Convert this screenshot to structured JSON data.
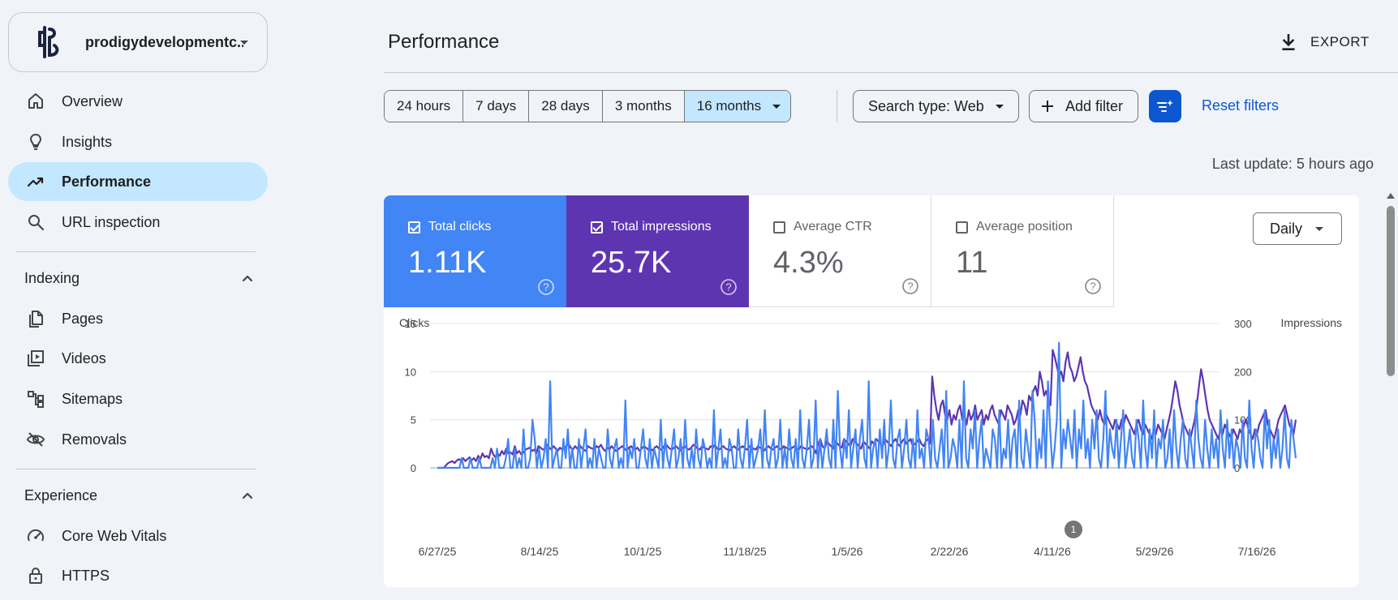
{
  "sidebar": {
    "property_name": "prodigydevelopmentc...",
    "nav": [
      {
        "label": "Overview",
        "icon": "home-icon"
      },
      {
        "label": "Insights",
        "icon": "lightbulb-icon"
      },
      {
        "label": "Performance",
        "icon": "trending-up-icon",
        "active": true
      },
      {
        "label": "URL inspection",
        "icon": "search-icon"
      }
    ],
    "indexing": {
      "title": "Indexing",
      "items": [
        {
          "label": "Pages",
          "icon": "pages-icon"
        },
        {
          "label": "Videos",
          "icon": "video-library-icon"
        },
        {
          "label": "Sitemaps",
          "icon": "sitemap-icon"
        },
        {
          "label": "Removals",
          "icon": "visibility-off-icon"
        }
      ]
    },
    "experience": {
      "title": "Experience",
      "items": [
        {
          "label": "Core Web Vitals",
          "icon": "speed-gauge-icon"
        },
        {
          "label": "HTTPS",
          "icon": "lock-icon"
        }
      ]
    }
  },
  "header": {
    "title": "Performance",
    "export_label": "EXPORT"
  },
  "filters": {
    "ranges": [
      "24 hours",
      "7 days",
      "28 days",
      "3 months",
      "16 months"
    ],
    "selected_range": "16 months",
    "search_type": "Search type: Web",
    "add_filter": "Add filter",
    "reset_filters": "Reset filters",
    "last_update": "Last update: 5 hours ago"
  },
  "metrics": [
    {
      "label": "Total clicks",
      "value": "1.11K",
      "checked": true,
      "color": "#4285f4"
    },
    {
      "label": "Total impressions",
      "value": "25.7K",
      "checked": true,
      "color": "#5e35b1"
    },
    {
      "label": "Average CTR",
      "value": "4.3%",
      "checked": false
    },
    {
      "label": "Average position",
      "value": "11",
      "checked": false
    }
  ],
  "granularity": "Daily",
  "annotation_marker": "1",
  "colors": {
    "clicks": "#4285f4",
    "impressions": "#5e35b1",
    "accent": "#0b57d0",
    "selected": "#c2e7ff"
  },
  "chart_data": {
    "type": "line",
    "ylabel_left": "Clicks",
    "ylabel_right": "Impressions",
    "ylim_left": [
      0,
      15
    ],
    "ylim_right": [
      0,
      300
    ],
    "yticks_left": [
      "15",
      "10",
      "5",
      "0"
    ],
    "yticks_right": [
      "300",
      "200",
      "100",
      "0"
    ],
    "x_ticks": [
      "6/27/25",
      "8/14/25",
      "10/1/25",
      "11/18/25",
      "1/5/26",
      "2/22/26",
      "4/11/26",
      "5/29/26",
      "7/16/26"
    ],
    "x_start": "2025-06-27",
    "series": [
      {
        "name": "Clicks",
        "axis": "left",
        "values": [
          0,
          0,
          0,
          0,
          0,
          0,
          0,
          0,
          0,
          0,
          0,
          1,
          0,
          0,
          0,
          1,
          0,
          0,
          0,
          1,
          0,
          0,
          0,
          0,
          0,
          1,
          0,
          2,
          0,
          0,
          0,
          1,
          3,
          0,
          0,
          2,
          0,
          1,
          0,
          4,
          0,
          0,
          1,
          5,
          3,
          0,
          2,
          0,
          1,
          3,
          0,
          9,
          0,
          1,
          2,
          0,
          0,
          3,
          1,
          4,
          0,
          2,
          0,
          0,
          3,
          0,
          2,
          4,
          0,
          1,
          0,
          3,
          0,
          2,
          1,
          0,
          0,
          4,
          1,
          0,
          2,
          3,
          0,
          1,
          0,
          7,
          0,
          2,
          1,
          3,
          0,
          0,
          2,
          4,
          1,
          0,
          3,
          0,
          2,
          1,
          0,
          5,
          0,
          3,
          1,
          0,
          2,
          4,
          0,
          1,
          3,
          0,
          5,
          1,
          0,
          2,
          0,
          4,
          1,
          0,
          3,
          2,
          0,
          1,
          0,
          6,
          0,
          2,
          4,
          0,
          1,
          0,
          3,
          2,
          0,
          0,
          4,
          1,
          0,
          2,
          5,
          0,
          3,
          0,
          1,
          2,
          4,
          0,
          6,
          1,
          0,
          2,
          3,
          0,
          1,
          5,
          0,
          2,
          0,
          4,
          1,
          0,
          3,
          0,
          6,
          1,
          0,
          2,
          5,
          0,
          1,
          7,
          0,
          3,
          0,
          2,
          4,
          1,
          0,
          5,
          0,
          8,
          2,
          0,
          3,
          1,
          6,
          0,
          2,
          4,
          0,
          3,
          5,
          1,
          0,
          9,
          0,
          2,
          3,
          0,
          4,
          1,
          5,
          0,
          2,
          7,
          1,
          0,
          3,
          4,
          0,
          2,
          5,
          1,
          0,
          3,
          0,
          6,
          1,
          2,
          0,
          4,
          3,
          0,
          5,
          1,
          0,
          2,
          4,
          0,
          8,
          0,
          1,
          3,
          2,
          0,
          5,
          0,
          9,
          1,
          0,
          4,
          2,
          6,
          0,
          3,
          5,
          0,
          2,
          1,
          0,
          4,
          3,
          0,
          6,
          0,
          2,
          1,
          5,
          0,
          3,
          4,
          0,
          7,
          1,
          0,
          4,
          2,
          0,
          8,
          5,
          0,
          3,
          1,
          6,
          0,
          9,
          4,
          0,
          2,
          5,
          13,
          0,
          4,
          2,
          5,
          3,
          1,
          6,
          0,
          4,
          2,
          7,
          1,
          3,
          0,
          5,
          2,
          6,
          1,
          0,
          3,
          8,
          0,
          4,
          2,
          1,
          5,
          0,
          3,
          6,
          0,
          2,
          4,
          1,
          0,
          5,
          3,
          0,
          7,
          2,
          0,
          4,
          1,
          6,
          0,
          3,
          2,
          5,
          0,
          1,
          4,
          0,
          6,
          2,
          0,
          3,
          5,
          1,
          0,
          4,
          2,
          0,
          7,
          3,
          1,
          0,
          5,
          2,
          0,
          4,
          1,
          3,
          0,
          6,
          2,
          0,
          5,
          1,
          4,
          0,
          3,
          2,
          0,
          5,
          1,
          0,
          7,
          2,
          0,
          4,
          3,
          1,
          0,
          6,
          2,
          5,
          0,
          3,
          1,
          4,
          0,
          2,
          6,
          1,
          0,
          5,
          3,
          1
        ]
      },
      {
        "name": "Impressions",
        "axis": "right",
        "values": [
          0,
          0,
          0,
          0,
          5,
          10,
          12,
          14,
          10,
          15,
          18,
          15,
          20,
          14,
          18,
          22,
          16,
          20,
          14,
          25,
          18,
          30,
          22,
          25,
          20,
          40,
          28,
          22,
          30,
          25,
          35,
          28,
          40,
          30,
          32,
          28,
          45,
          30,
          35,
          28,
          32,
          38,
          40,
          42,
          35,
          38,
          30,
          45,
          42,
          38,
          40,
          48,
          42,
          38,
          45,
          40,
          35,
          42,
          38,
          40,
          45,
          50,
          42,
          38,
          45,
          40,
          48,
          42,
          38,
          35,
          45,
          42,
          40,
          38,
          45,
          42,
          48,
          40,
          35,
          42,
          38,
          45,
          40,
          35,
          38,
          42,
          45,
          40,
          36,
          42,
          45,
          40,
          38,
          42,
          35,
          40,
          45,
          42,
          38,
          40,
          36,
          42,
          45,
          40,
          38,
          42,
          50,
          45,
          40,
          38,
          42,
          45,
          40,
          36,
          42,
          45,
          40,
          38,
          42,
          48,
          45,
          40,
          38,
          45,
          42,
          40,
          38,
          45,
          42,
          48,
          40,
          38,
          42,
          45,
          40,
          38,
          36,
          42,
          45,
          40,
          38,
          42,
          45,
          40,
          38,
          45,
          42,
          40,
          38,
          45,
          42,
          40,
          36,
          42,
          45,
          40,
          38,
          42,
          45,
          40,
          38,
          45,
          42,
          40,
          38,
          42,
          45,
          40,
          38,
          45,
          42,
          40,
          38,
          42,
          45,
          40,
          30,
          50,
          60,
          45,
          40,
          55,
          50,
          45,
          40,
          55,
          50,
          45,
          42,
          60,
          55,
          50,
          45,
          60,
          55,
          50,
          45,
          40,
          55,
          50,
          45,
          40,
          55,
          50,
          60,
          55,
          50,
          45,
          60,
          55,
          50,
          45,
          55,
          60,
          50,
          45,
          55,
          60,
          50,
          55,
          60,
          45,
          50,
          55,
          60,
          50,
          45,
          55,
          60,
          50,
          190,
          150,
          120,
          100,
          130,
          140,
          110,
          100,
          120,
          90,
          110,
          100,
          120,
          130,
          100,
          110,
          90,
          120,
          100,
          110,
          130,
          100,
          110,
          120,
          90,
          110,
          100,
          120,
          130,
          110,
          100,
          90,
          120,
          110,
          100,
          130,
          120,
          110,
          90,
          100,
          120,
          110,
          140,
          130,
          110,
          150,
          140,
          160,
          170,
          150,
          200,
          180,
          150,
          160,
          140,
          130,
          245,
          230,
          210,
          190,
          200,
          180,
          220,
          240,
          210,
          200,
          180,
          190,
          210,
          230,
          200,
          180,
          170,
          150,
          130,
          120,
          110,
          100,
          120,
          100,
          90,
          110,
          100,
          90,
          80,
          100,
          90,
          80,
          100,
          90,
          110,
          100,
          90,
          80,
          70,
          90,
          100,
          80,
          70,
          90,
          80,
          70,
          60,
          80,
          70,
          90,
          80,
          70,
          60,
          80,
          100,
          120,
          150,
          180,
          160,
          130,
          110,
          90,
          80,
          70,
          60,
          80,
          100,
          130,
          170,
          205,
          180,
          150,
          120,
          100,
          90,
          80,
          70,
          60,
          80,
          70,
          90,
          80,
          70,
          60,
          80,
          70,
          60,
          80,
          70,
          90,
          100,
          80,
          70,
          60,
          80,
          70,
          90,
          100,
          110,
          120,
          90,
          80,
          70,
          60,
          80,
          100,
          110,
          120,
          130,
          110,
          90,
          80,
          70,
          100
        ]
      }
    ]
  }
}
